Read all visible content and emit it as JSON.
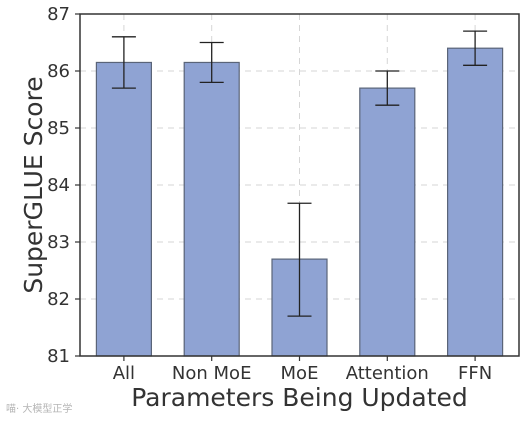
{
  "chart_data": {
    "type": "bar",
    "title": "",
    "xlabel": "Parameters Being Updated",
    "ylabel": "SuperGLUE Score",
    "categories": [
      "All",
      "Non MoE",
      "MoE",
      "Attention",
      "FFN"
    ],
    "values": [
      86.15,
      86.15,
      82.7,
      85.7,
      86.4
    ],
    "error_low": [
      85.7,
      85.8,
      81.7,
      85.4,
      86.1
    ],
    "error_high": [
      86.6,
      86.5,
      83.68,
      86.0,
      86.7
    ],
    "ylim": [
      81,
      87
    ],
    "yticks": [
      81,
      82,
      83,
      84,
      85,
      86,
      87
    ],
    "grid": true,
    "grid_style": "dashed",
    "bar_color": "#8fa3d3",
    "bar_edge_color": "#5a6478",
    "error_bar_color": "#222222"
  },
  "watermark": {
    "text": "喵· 大模型正学"
  }
}
